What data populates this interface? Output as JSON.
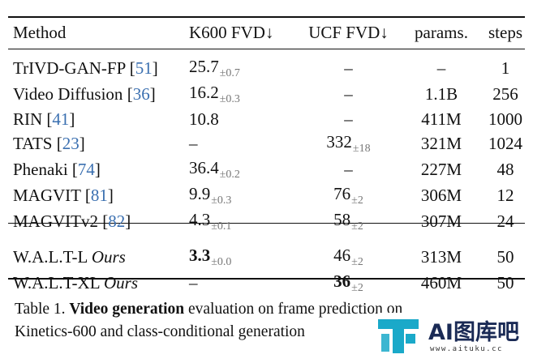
{
  "table": {
    "headers": [
      "Method",
      "K600 FVD↓",
      "UCF FVD↓",
      "params.",
      "steps"
    ],
    "rows": [
      {
        "method": "TrIVD-GAN-FP",
        "ref": "51",
        "k600": "25.7",
        "k600_pm": "±0.7",
        "ucf": "–",
        "ucf_pm": "",
        "params": "–",
        "steps": "1"
      },
      {
        "method": "Video Diffusion",
        "ref": "36",
        "k600": "16.2",
        "k600_pm": "±0.3",
        "ucf": "–",
        "ucf_pm": "",
        "params": "1.1B",
        "steps": "256"
      },
      {
        "method": "RIN",
        "ref": "41",
        "k600": "10.8",
        "k600_pm": "",
        "ucf": "–",
        "ucf_pm": "",
        "params": "411M",
        "steps": "1000"
      },
      {
        "method": "TATS",
        "ref": "23",
        "k600": "–",
        "k600_pm": "",
        "ucf": "332",
        "ucf_pm": "±18",
        "params": "321M",
        "steps": "1024"
      },
      {
        "method": "Phenaki",
        "ref": "74",
        "k600": "36.4",
        "k600_pm": "±0.2",
        "ucf": "–",
        "ucf_pm": "",
        "params": "227M",
        "steps": "48"
      },
      {
        "method": "MAGVIT",
        "ref": "81",
        "k600": "9.9",
        "k600_pm": "±0.3",
        "ucf": "76",
        "ucf_pm": "±2",
        "params": "306M",
        "steps": "12"
      },
      {
        "method": "MAGVITv2",
        "ref": "82",
        "k600": "4.3",
        "k600_pm": "±0.1",
        "ucf": "58",
        "ucf_pm": "±2",
        "params": "307M",
        "steps": "24"
      }
    ],
    "ours_rows": [
      {
        "method": "W.A.L.T-L",
        "tag": "Ours",
        "k600": "3.3",
        "k600_pm": "±0.0",
        "ucf": "46",
        "ucf_pm": "±2",
        "params": "313M",
        "steps": "50"
      },
      {
        "method": "W.A.L.T-XL",
        "tag": "Ours",
        "k600": "–",
        "k600_pm": "",
        "ucf": "36",
        "ucf_pm": "±2",
        "params": "460M",
        "steps": "50"
      }
    ]
  },
  "caption": {
    "lead": "Table 1.",
    "bold": "Video generation",
    "line1_rest": " evaluation on frame prediction on",
    "line2": "Kinetics-600 and class-conditional generation"
  },
  "watermark": {
    "title": "AI图库吧",
    "url": "www.aituku.cc",
    "color": "#1aa9c9"
  }
}
